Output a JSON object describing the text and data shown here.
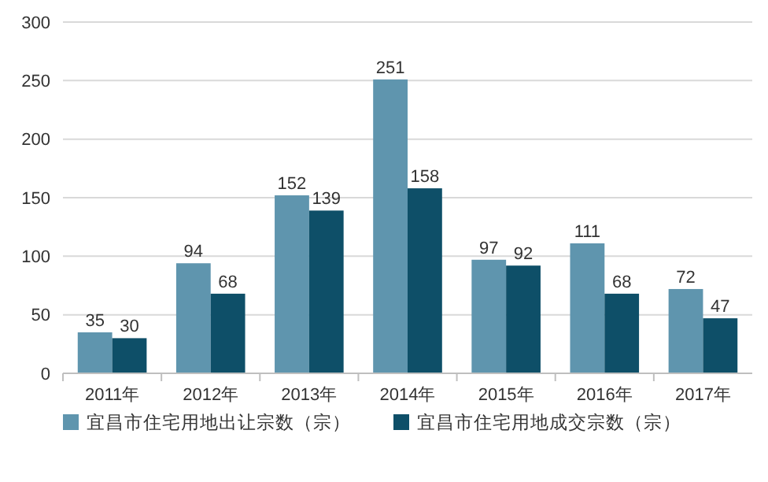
{
  "chart_data": {
    "type": "bar",
    "categories": [
      "2011年",
      "2012年",
      "2013年",
      "2014年",
      "2015年",
      "2016年",
      "2017年"
    ],
    "series": [
      {
        "name": "宜昌市住宅用地出让宗数（宗）",
        "color": "#5f95ae",
        "values": [
          35,
          94,
          152,
          251,
          97,
          111,
          72
        ]
      },
      {
        "name": "宜昌市住宅用地成交宗数（宗）",
        "color": "#0e4f68",
        "values": [
          30,
          68,
          139,
          158,
          92,
          68,
          47
        ]
      }
    ],
    "ylim": [
      0,
      300
    ],
    "yticks": [
      0,
      50,
      100,
      150,
      200,
      250,
      300
    ],
    "grid": "y",
    "legend": "bottom",
    "data_labels": true
  }
}
